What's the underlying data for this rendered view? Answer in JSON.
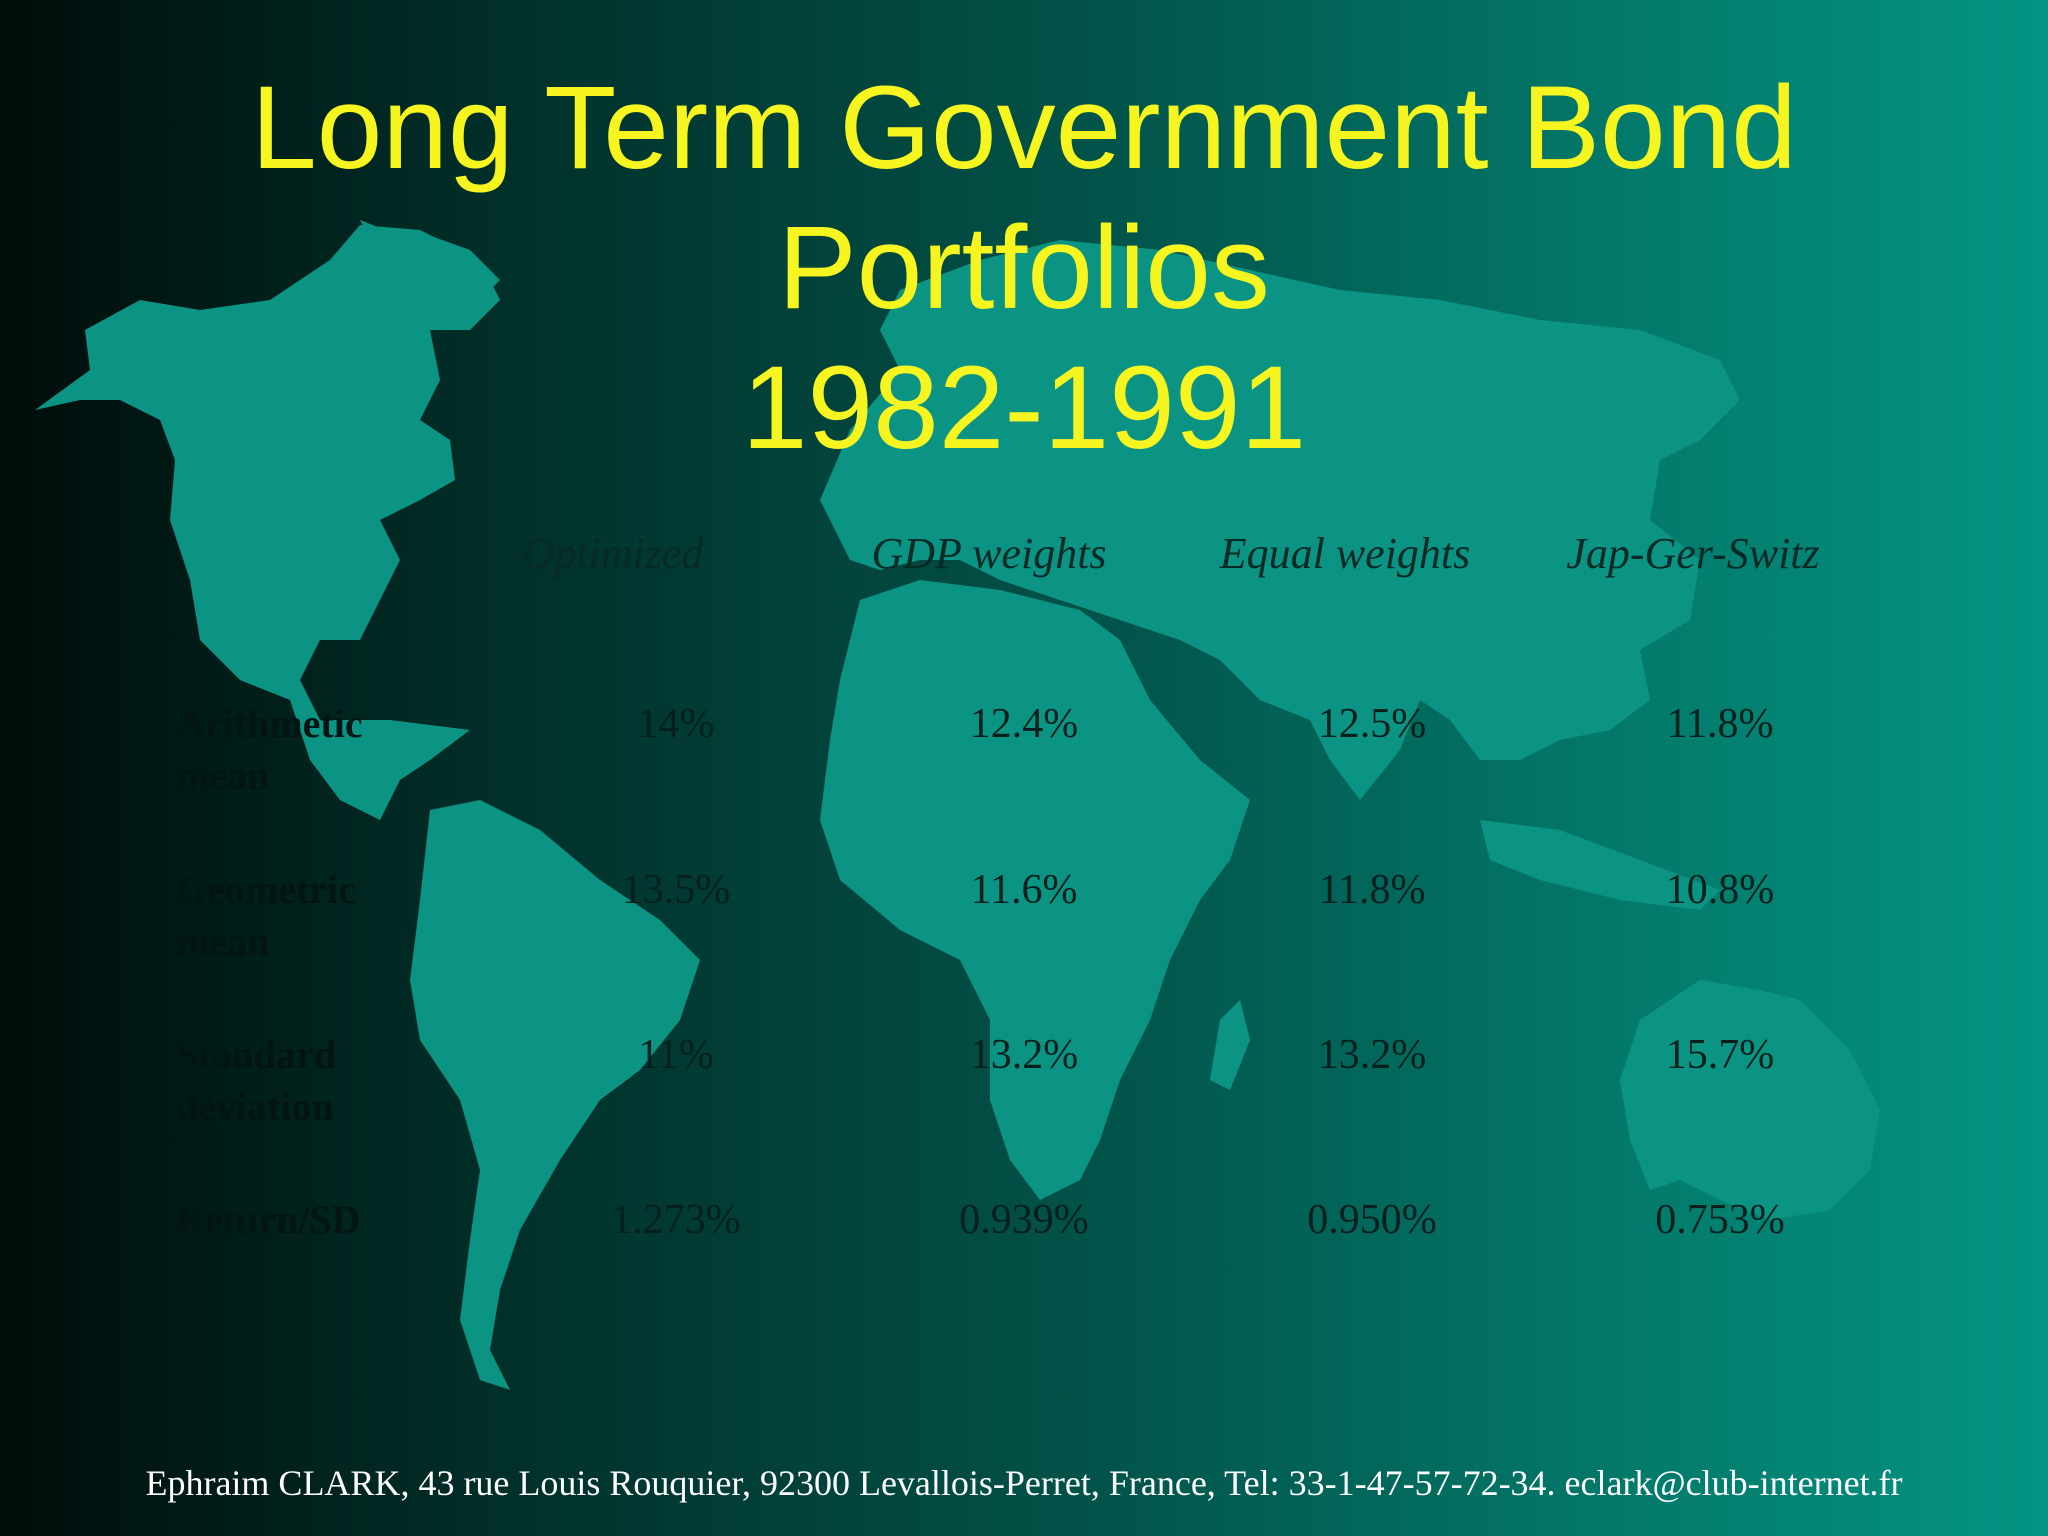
{
  "slide": {
    "title_lines": [
      "Long Term Government Bond",
      "Portfolios",
      "1982-1991"
    ],
    "text_color": "#f7f51f",
    "background_image": "world-map"
  },
  "table": {
    "columns": [
      "Optimized",
      "GDP weights",
      "Equal weights",
      "Jap-Ger-Switz"
    ],
    "rows": [
      {
        "label_lines": [
          "Arithmetic",
          "mean"
        ],
        "values": [
          "14%",
          "12.4%",
          "12.5%",
          "11.8%"
        ]
      },
      {
        "label_lines": [
          "Geometric",
          "mean"
        ],
        "values": [
          "13.5%",
          "11.6%",
          "11.8%",
          "10.8%"
        ]
      },
      {
        "label_lines": [
          "Standard",
          "deviation"
        ],
        "values": [
          "11%",
          "13.2%",
          "13.2%",
          "15.7%"
        ]
      },
      {
        "label_lines": [
          "Return/SD"
        ],
        "values": [
          "1.273%",
          "0.939%",
          "0.950%",
          "0.753%"
        ]
      }
    ]
  },
  "footer": {
    "text": "Ephraim CLARK, 43 rue Louis Rouquier, 92300 Levallois-Perret, France, Tel: 33-1-47-57-72-34. eclark@club-internet.fr"
  }
}
